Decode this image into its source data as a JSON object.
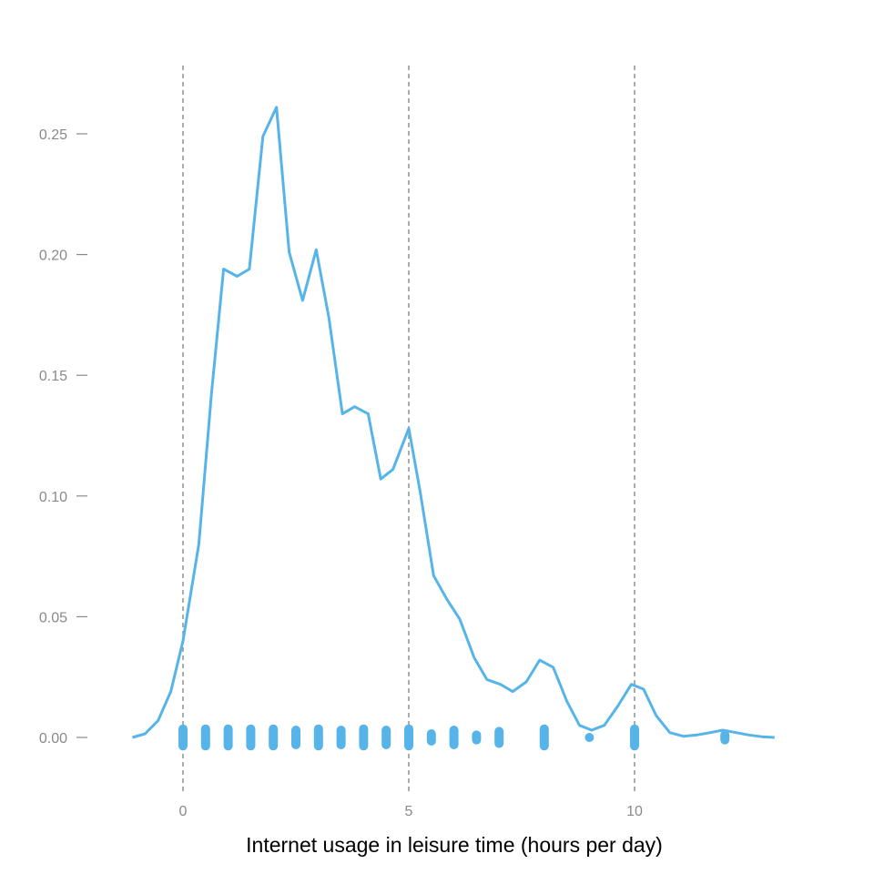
{
  "chart_data": {
    "type": "line",
    "title": "",
    "xlabel": "Internet usage in leisure time (hours per day)",
    "ylabel": "",
    "xlim": [
      -1.5,
      13.5
    ],
    "ylim": [
      -0.018,
      0.278
    ],
    "x_ticks": [
      0,
      5,
      10
    ],
    "x_tick_labels": [
      "0",
      "5",
      "10"
    ],
    "y_ticks": [
      0.0,
      0.05,
      0.1,
      0.15,
      0.2,
      0.25
    ],
    "y_tick_labels": [
      "0.00",
      "0.05",
      "0.10",
      "0.15",
      "0.20",
      "0.25"
    ],
    "vlines": [
      0,
      5,
      10
    ],
    "grid": false,
    "legend": "none",
    "colors": {
      "series": "#56b4e9",
      "vline": "#888888",
      "tick": "#8a8a8a"
    },
    "series": [
      {
        "type": "line",
        "x": [
          -1.12,
          -0.84,
          -0.55,
          -0.27,
          0.0,
          0.35,
          0.63,
          0.9,
          1.2,
          1.47,
          1.77,
          2.07,
          2.35,
          2.65,
          2.95,
          3.23,
          3.53,
          3.8,
          4.1,
          4.38,
          4.65,
          5.0,
          5.25,
          5.55,
          5.85,
          6.13,
          6.45,
          6.73,
          7.03,
          7.3,
          7.6,
          7.9,
          8.2,
          8.5,
          8.78,
          9.05,
          9.33,
          9.63,
          9.93,
          10.2,
          10.48,
          10.78,
          11.08,
          11.38,
          11.68,
          11.95,
          12.25,
          12.53,
          12.82,
          13.1
        ],
        "y": [
          0.0,
          0.0015,
          0.007,
          0.019,
          0.04,
          0.08,
          0.142,
          0.194,
          0.191,
          0.194,
          0.249,
          0.261,
          0.201,
          0.181,
          0.202,
          0.174,
          0.134,
          0.137,
          0.134,
          0.107,
          0.111,
          0.128,
          0.102,
          0.067,
          0.057,
          0.049,
          0.033,
          0.024,
          0.022,
          0.019,
          0.023,
          0.032,
          0.029,
          0.015,
          0.005,
          0.003,
          0.005,
          0.013,
          0.022,
          0.02,
          0.009,
          0.002,
          0.0005,
          0.001,
          0.002,
          0.003,
          0.002,
          0.001,
          0.0003,
          0.0
        ]
      },
      {
        "type": "scatter",
        "x": [
          0,
          0.5,
          1,
          1.5,
          2,
          2.5,
          3,
          3.5,
          4,
          4.5,
          5,
          5.5,
          6,
          6.5,
          7,
          8,
          9,
          10,
          12
        ],
        "y": [
          0,
          0,
          0,
          0,
          0,
          0,
          0,
          0,
          0,
          0,
          0,
          0,
          0,
          0,
          0,
          0,
          0,
          0,
          0
        ],
        "jitter": [
          0.0035,
          0.0035,
          0.0035,
          0.0035,
          0.0035,
          0.003,
          0.0035,
          0.003,
          0.0035,
          0.003,
          0.0035,
          0.0015,
          0.003,
          0.001,
          0.0025,
          0.0035,
          0.0,
          0.0035,
          0.001
        ]
      }
    ]
  }
}
